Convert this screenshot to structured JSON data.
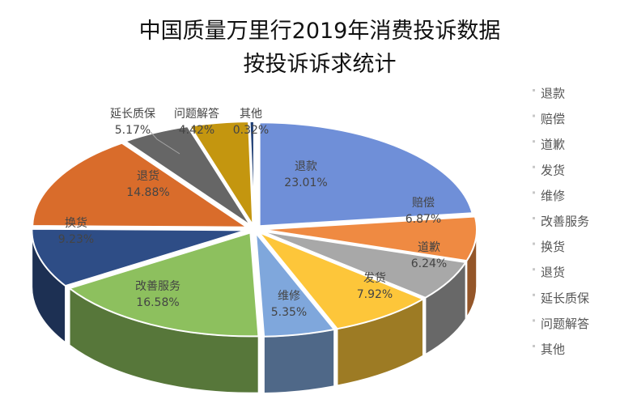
{
  "chart_data": {
    "type": "pie",
    "style": "3d-exploded",
    "title": [
      "中国质量万里行2019年消费投诉数据",
      "按投诉诉求统计"
    ],
    "categories": [
      "退款",
      "赔偿",
      "道歉",
      "发货",
      "维修",
      "改善服务",
      "换货",
      "退货",
      "延长质保",
      "问题解答",
      "其他"
    ],
    "values": [
      23.01,
      6.87,
      6.24,
      7.92,
      5.35,
      16.58,
      9.23,
      14.88,
      5.17,
      4.42,
      0.32
    ],
    "value_labels": [
      "23.01%",
      "6.87%",
      "6.24%",
      "7.92%",
      "5.35%",
      "16.58%",
      "9.23%",
      "14.88%",
      "5.17%",
      "4.42%",
      "0.32%"
    ],
    "colors": [
      "#6f8fd8",
      "#ef8a42",
      "#a8a8a8",
      "#fdc63a",
      "#7fa7dc",
      "#8dc05e",
      "#2e4d86",
      "#d96c2b",
      "#666666",
      "#c4960f",
      "#1f3f75"
    ],
    "legend": {
      "position": "right",
      "entries": [
        "退款",
        "赔偿",
        "道歉",
        "发货",
        "维修",
        "改善服务",
        "换货",
        "退货",
        "延长质保",
        "问题解答",
        "其他"
      ]
    }
  }
}
